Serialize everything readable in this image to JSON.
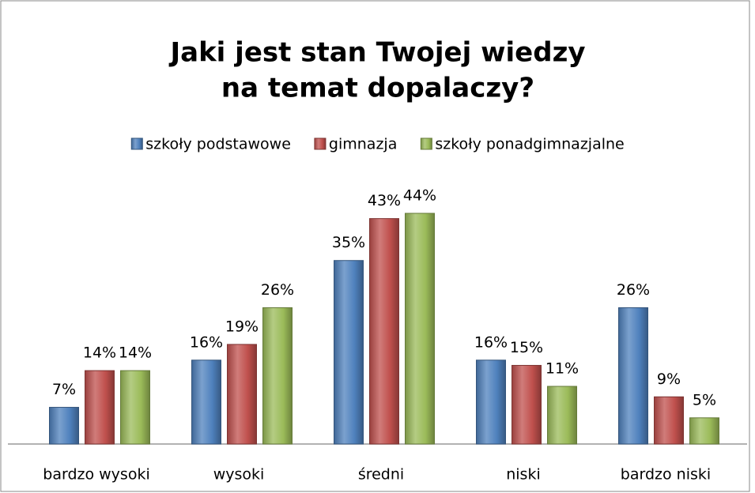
{
  "chart_data": {
    "type": "bar",
    "title": [
      "Jaki jest stan Twojej wiedzy",
      "na temat dopalaczy?"
    ],
    "categories": [
      "bardzo wysoki",
      "wysoki",
      "średni",
      "niski",
      "bardzo niski"
    ],
    "series": [
      {
        "name": "szkoły podstawowe",
        "color": "#4f81bd",
        "values": [
          7,
          16,
          35,
          16,
          26
        ],
        "value_labels": [
          "7%",
          "16%",
          "35%",
          "16%",
          "26%"
        ]
      },
      {
        "name": "gimnazja",
        "color": "#c0504d",
        "values": [
          14,
          19,
          43,
          15,
          9
        ],
        "value_labels": [
          "14%",
          "19%",
          "43%",
          "15%",
          "9%"
        ]
      },
      {
        "name": "szkoły ponadgimnazjalne",
        "color": "#9bbb59",
        "values": [
          14,
          26,
          44,
          11,
          5
        ],
        "value_labels": [
          "14%",
          "26%",
          "44%",
          "11%",
          "5%"
        ]
      }
    ],
    "legend": "top"
  }
}
